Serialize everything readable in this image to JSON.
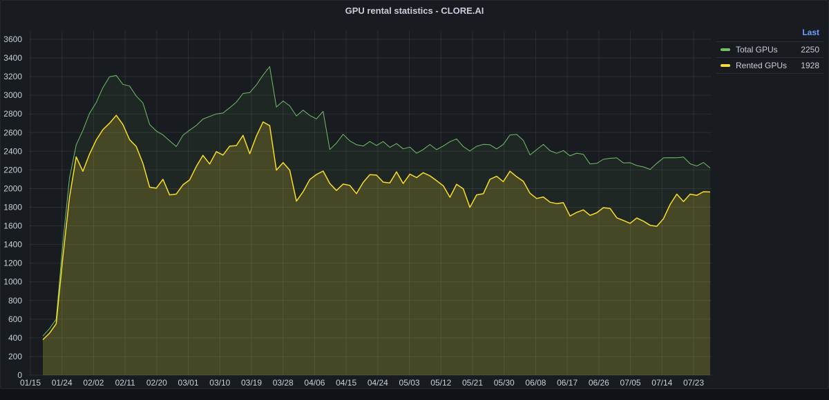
{
  "panel": {
    "title": "GPU rental statistics - CLORE.AI"
  },
  "legend": {
    "header": "Last",
    "items": [
      {
        "name": "Total GPUs",
        "value": "2250",
        "color": "#73bf69"
      },
      {
        "name": "Rented GPUs",
        "value": "1928",
        "color": "#fade2a"
      }
    ]
  },
  "chart_data": {
    "type": "area",
    "title": "GPU rental statistics - CLORE.AI",
    "xlabel": "",
    "ylabel": "",
    "ylim": [
      0,
      3700
    ],
    "yticks": [
      0,
      200,
      400,
      600,
      800,
      1000,
      1200,
      1400,
      1600,
      1800,
      2000,
      2200,
      2400,
      2600,
      2800,
      3000,
      3200,
      3400,
      3600
    ],
    "xticks": [
      "01/15",
      "01/24",
      "02/02",
      "02/11",
      "02/20",
      "03/01",
      "03/10",
      "03/19",
      "03/28",
      "04/06",
      "04/15",
      "04/24",
      "05/03",
      "05/12",
      "05/21",
      "05/30",
      "06/08",
      "06/17",
      "06/26",
      "07/05",
      "07/14",
      "07/23"
    ],
    "grid": true,
    "legend_position": "right",
    "x": [
      "01/16",
      "01/18",
      "01/20",
      "01/22",
      "01/23",
      "01/24",
      "01/25",
      "01/26",
      "01/28",
      "01/30",
      "02/01",
      "02/02",
      "02/04",
      "02/06",
      "02/08",
      "02/10",
      "02/12",
      "02/14",
      "02/16",
      "02/18",
      "02/20",
      "02/22",
      "02/24",
      "02/26",
      "02/28",
      "03/01",
      "03/03",
      "03/05",
      "03/07",
      "03/09",
      "03/11",
      "03/13",
      "03/15",
      "03/17",
      "03/19",
      "03/21",
      "03/23",
      "03/25",
      "03/27",
      "03/29",
      "03/31",
      "04/02",
      "04/04",
      "04/06",
      "04/08",
      "04/10",
      "04/12",
      "04/14",
      "04/16",
      "04/18",
      "04/20",
      "04/22",
      "04/24",
      "04/26",
      "04/28",
      "04/30",
      "05/02",
      "05/04",
      "05/06",
      "05/08",
      "05/10",
      "05/12",
      "05/14",
      "05/16",
      "05/18",
      "05/20",
      "05/22",
      "05/24",
      "05/26",
      "05/28",
      "05/30",
      "06/01",
      "06/03",
      "06/05",
      "06/07",
      "06/09",
      "06/11",
      "06/13",
      "06/15",
      "06/17",
      "06/19",
      "06/21",
      "06/23",
      "06/25",
      "06/27",
      "06/29",
      "07/01",
      "07/03",
      "07/05",
      "07/07",
      "07/09",
      "07/11",
      "07/13",
      "07/15",
      "07/17",
      "07/19",
      "07/21",
      "07/23",
      "07/25",
      "07/27",
      "07/29"
    ],
    "series": [
      {
        "name": "Total GPUs",
        "color": "#73bf69",
        "values": [
          420,
          500,
          600,
          1400,
          2100,
          2450,
          2600,
          2800,
          2950,
          3100,
          3200,
          3220,
          3150,
          3100,
          3000,
          2900,
          2650,
          2600,
          2550,
          2500,
          2420,
          2550,
          2600,
          2700,
          2780,
          2800,
          2820,
          2850,
          2900,
          2950,
          2980,
          3000,
          3100,
          3200,
          3300,
          2850,
          2900,
          2850,
          2800,
          2850,
          2800,
          2750,
          2850,
          2450,
          2500,
          2550,
          2500,
          2450,
          2450,
          2500,
          2450,
          2500,
          2450,
          2500,
          2450,
          2450,
          2400,
          2450,
          2500,
          2450,
          2450,
          2500,
          2500,
          2450,
          2400,
          2450,
          2450,
          2500,
          2450,
          2500,
          2600,
          2600,
          2550,
          2400,
          2450,
          2450,
          2400,
          2350,
          2400,
          2350,
          2350,
          2350,
          2300,
          2300,
          2350,
          2350,
          2350,
          2300,
          2300,
          2250,
          2200,
          2200,
          2250,
          2300,
          2300,
          2300,
          2300,
          2300,
          2280,
          2300,
          2250
        ]
      },
      {
        "name": "Rented GPUs",
        "color": "#fade2a",
        "values": [
          380,
          450,
          550,
          1300,
          1950,
          2350,
          2200,
          2400,
          2550,
          2600,
          2700,
          2750,
          2650,
          2500,
          2400,
          2250,
          2050,
          2050,
          2100,
          1950,
          1950,
          2050,
          2150,
          2200,
          2300,
          2250,
          2350,
          2350,
          2400,
          2450,
          2550,
          2400,
          2600,
          2750,
          2700,
          2250,
          2300,
          2200,
          1850,
          1950,
          2050,
          2100,
          2150,
          2050,
          1950,
          2000,
          2050,
          2000,
          2100,
          2150,
          2150,
          2100,
          2100,
          2150,
          2050,
          2100,
          2100,
          2150,
          2100,
          2050,
          2000,
          1950,
          2050,
          2000,
          1850,
          1950,
          2000,
          2100,
          2100,
          2050,
          2150,
          2100,
          2050,
          1950,
          1850,
          1950,
          1900,
          1850,
          1850,
          1750,
          1800,
          1800,
          1750,
          1700,
          1750,
          1750,
          1650,
          1650,
          1600,
          1650,
          1700,
          1650,
          1600,
          1700,
          1850,
          1950,
          1900,
          1950,
          1900,
          1950,
          1928
        ]
      }
    ]
  }
}
